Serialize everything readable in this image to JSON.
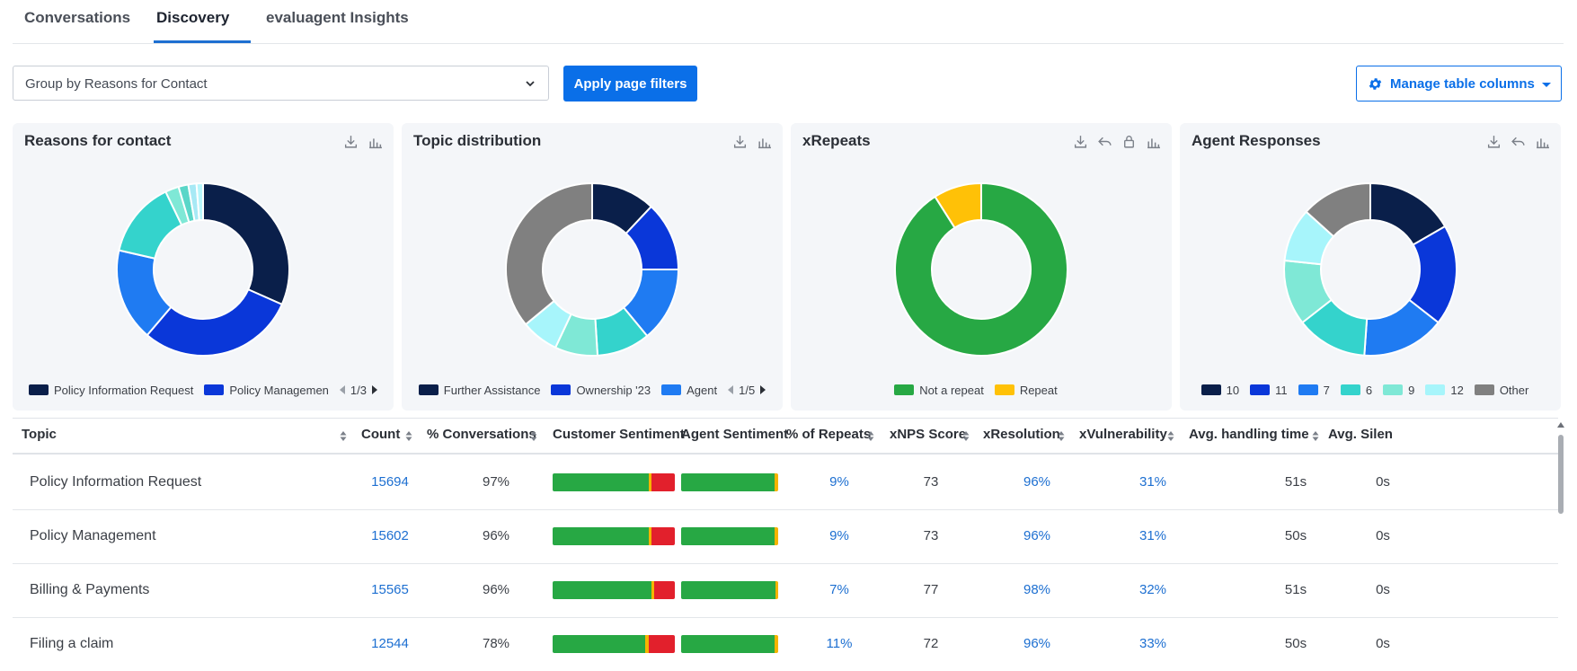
{
  "tabs": [
    {
      "label": "Conversations"
    },
    {
      "label": "Discovery"
    },
    {
      "label": "evaluagent Insights"
    }
  ],
  "toolbar": {
    "group_by": "Group by Reasons for Contact",
    "apply_label": "Apply page filters",
    "manage_label": "Manage table columns"
  },
  "colors": {
    "accent": "#0a6fe8",
    "link": "#1d6fd1",
    "positive": "#27a844",
    "negative": "#e2202c",
    "neutral": "#f5b400"
  },
  "cards": [
    {
      "title": "Reasons for contact",
      "icons": [
        "download-icon",
        "bar-chart-icon"
      ],
      "chart_data": {
        "type": "pie",
        "values": [
          31,
          29,
          17,
          14,
          2.5,
          1.8,
          1.5,
          1.2
        ],
        "colors": [
          "#0a1f4a",
          "#0a37d9",
          "#1f7bf2",
          "#34d3cc",
          "#7fe8d6",
          "#5ad6c8",
          "#a7e9f5",
          "#b7f6fb"
        ]
      },
      "legend": [
        {
          "label": "Policy Information Request",
          "color": "#0a1f4a"
        },
        {
          "label": "Policy Managemen",
          "color": "#0a37d9"
        }
      ],
      "pager": "1/3"
    },
    {
      "title": "Topic distribution",
      "icons": [
        "download-icon",
        "bar-chart-icon"
      ],
      "chart_data": {
        "type": "pie",
        "values": [
          12,
          13,
          14,
          10,
          8,
          7,
          36
        ],
        "colors": [
          "#0a1f4a",
          "#0a37d9",
          "#1f7bf2",
          "#34d3cc",
          "#7fe8d6",
          "#a7f5fb",
          "#808080"
        ]
      },
      "legend": [
        {
          "label": "Further Assistance",
          "color": "#0a1f4a"
        },
        {
          "label": "Ownership '23",
          "color": "#0a37d9"
        },
        {
          "label": "Agent",
          "color": "#1f7bf2"
        }
      ],
      "pager": "1/5"
    },
    {
      "title": "xRepeats",
      "icons": [
        "download-icon",
        "share-icon",
        "lock-icon",
        "bar-chart-icon"
      ],
      "chart_data": {
        "type": "pie",
        "values": [
          91,
          9
        ],
        "colors": [
          "#27a844",
          "#ffc107"
        ]
      },
      "legend": [
        {
          "label": "Not a repeat",
          "color": "#27a844"
        },
        {
          "label": "Repeat",
          "color": "#ffc107"
        }
      ],
      "pager": ""
    },
    {
      "title": "Agent Responses",
      "icons": [
        "download-icon",
        "share-icon",
        "bar-chart-icon"
      ],
      "chart_data": {
        "type": "pie",
        "values": [
          15,
          17,
          14,
          12,
          11,
          9,
          12
        ],
        "colors": [
          "#0a1f4a",
          "#0a37d9",
          "#1f7bf2",
          "#34d3cc",
          "#7fe8d6",
          "#a7f5fb",
          "#808080"
        ]
      },
      "legend": [
        {
          "label": "10",
          "color": "#0a1f4a"
        },
        {
          "label": "11",
          "color": "#0a37d9"
        },
        {
          "label": "7",
          "color": "#1f7bf2"
        },
        {
          "label": "6",
          "color": "#34d3cc"
        },
        {
          "label": "9",
          "color": "#7fe8d6"
        },
        {
          "label": "12",
          "color": "#a7f5fb"
        },
        {
          "label": "Other",
          "color": "#808080"
        }
      ],
      "pager": ""
    }
  ],
  "table": {
    "columns": [
      "Topic",
      "Count",
      "% Conversations",
      "Customer Sentiment",
      "Agent Sentiment",
      "% of Repeats",
      "xNPS Score",
      "xResolution",
      "xVulnerability",
      "Avg. handling time",
      "Avg. Silen"
    ],
    "rows": [
      {
        "topic": "Policy Information Request",
        "count": "15694",
        "conversations": "97%",
        "customer_sentiment": [
          0.79,
          0.02,
          0.19
        ],
        "agent_sentiment": [
          0.96,
          0.04,
          0
        ],
        "repeats": "9%",
        "xnps": "73",
        "xresolution": "96%",
        "xvulnerability": "31%",
        "aht": "51s",
        "silence": "0s"
      },
      {
        "topic": "Policy Management",
        "count": "15602",
        "conversations": "96%",
        "customer_sentiment": [
          0.79,
          0.02,
          0.19
        ],
        "agent_sentiment": [
          0.96,
          0.04,
          0
        ],
        "repeats": "9%",
        "xnps": "73",
        "xresolution": "96%",
        "xvulnerability": "31%",
        "aht": "50s",
        "silence": "0s"
      },
      {
        "topic": "Billing & Payments",
        "count": "15565",
        "conversations": "96%",
        "customer_sentiment": [
          0.81,
          0.02,
          0.17
        ],
        "agent_sentiment": [
          0.97,
          0.03,
          0
        ],
        "repeats": "7%",
        "xnps": "77",
        "xresolution": "98%",
        "xvulnerability": "32%",
        "aht": "51s",
        "silence": "0s"
      },
      {
        "topic": "Filing a claim",
        "count": "12544",
        "conversations": "78%",
        "customer_sentiment": [
          0.76,
          0.03,
          0.21
        ],
        "agent_sentiment": [
          0.96,
          0.04,
          0
        ],
        "repeats": "11%",
        "xnps": "72",
        "xresolution": "96%",
        "xvulnerability": "33%",
        "aht": "50s",
        "silence": "0s"
      }
    ]
  }
}
